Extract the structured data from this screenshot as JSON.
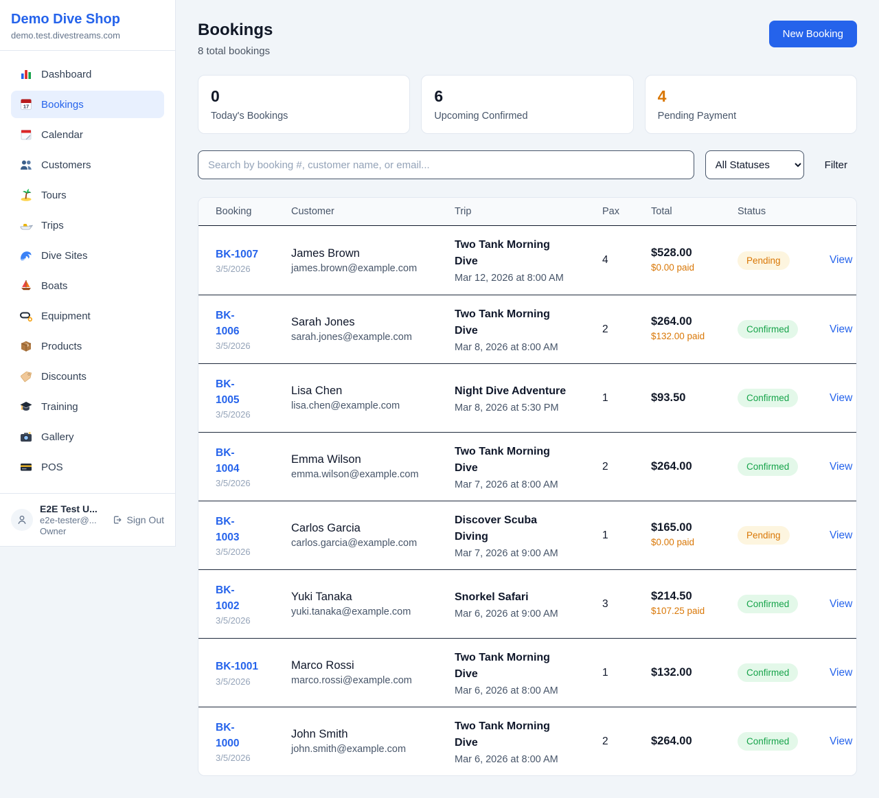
{
  "sidebar": {
    "shop_name": "Demo Dive Shop",
    "shop_domain": "demo.test.divestreams.com",
    "items": [
      {
        "label": "Dashboard",
        "icon": "dashboard-icon",
        "active": false
      },
      {
        "label": "Bookings",
        "icon": "bookings-icon",
        "active": true
      },
      {
        "label": "Calendar",
        "icon": "calendar-icon",
        "active": false
      },
      {
        "label": "Customers",
        "icon": "customers-icon",
        "active": false
      },
      {
        "label": "Tours",
        "icon": "tours-icon",
        "active": false
      },
      {
        "label": "Trips",
        "icon": "trips-icon",
        "active": false
      },
      {
        "label": "Dive Sites",
        "icon": "dive-sites-icon",
        "active": false
      },
      {
        "label": "Boats",
        "icon": "boats-icon",
        "active": false
      },
      {
        "label": "Equipment",
        "icon": "equipment-icon",
        "active": false
      },
      {
        "label": "Products",
        "icon": "products-icon",
        "active": false
      },
      {
        "label": "Discounts",
        "icon": "discounts-icon",
        "active": false
      },
      {
        "label": "Training",
        "icon": "training-icon",
        "active": false
      },
      {
        "label": "Gallery",
        "icon": "gallery-icon",
        "active": false
      },
      {
        "label": "POS",
        "icon": "pos-icon",
        "active": false
      }
    ],
    "user": {
      "name": "E2E Test U...",
      "email": "e2e-tester@...",
      "role": "Owner",
      "sign_out_label": "Sign Out"
    }
  },
  "header": {
    "title": "Bookings",
    "subtitle": "8 total bookings",
    "new_booking_label": "New Booking"
  },
  "stats": [
    {
      "value": "0",
      "label": "Today's Bookings",
      "color": "#111827"
    },
    {
      "value": "6",
      "label": "Upcoming Confirmed",
      "color": "#111827"
    },
    {
      "value": "4",
      "label": "Pending Payment",
      "color": "#d97706"
    }
  ],
  "filters": {
    "search_placeholder": "Search by booking #, customer name, or email...",
    "status_selected": "All Statuses",
    "filter_label": "Filter"
  },
  "table": {
    "columns": [
      "Booking",
      "Customer",
      "Trip",
      "Pax",
      "Total",
      "Status"
    ],
    "view_label": "View",
    "rows": [
      {
        "number": "BK-1007",
        "number_lines": [
          "BK-1007"
        ],
        "date": "3/5/2026",
        "customer_name": "James Brown",
        "customer_email": "james.brown@example.com",
        "trip_lines": [
          "Two Tank Morning",
          "Dive"
        ],
        "trip_datetime": "Mar 12, 2026 at 8:00 AM",
        "pax": "4",
        "total": "$528.00",
        "paid": "$0.00 paid",
        "status": "Pending"
      },
      {
        "number": "BK-1006",
        "number_lines": [
          "BK-",
          "1006"
        ],
        "date": "3/5/2026",
        "customer_name": "Sarah Jones",
        "customer_email": "sarah.jones@example.com",
        "trip_lines": [
          "Two Tank Morning",
          "Dive"
        ],
        "trip_datetime": "Mar 8, 2026 at 8:00 AM",
        "pax": "2",
        "total": "$264.00",
        "paid": "$132.00 paid",
        "status": "Confirmed"
      },
      {
        "number": "BK-1005",
        "number_lines": [
          "BK-",
          "1005"
        ],
        "date": "3/5/2026",
        "customer_name": "Lisa Chen",
        "customer_email": "lisa.chen@example.com",
        "trip_lines": [
          "Night Dive Adventure"
        ],
        "trip_datetime": "Mar 8, 2026 at 5:30 PM",
        "pax": "1",
        "total": "$93.50",
        "paid": null,
        "status": "Confirmed"
      },
      {
        "number": "BK-1004",
        "number_lines": [
          "BK-",
          "1004"
        ],
        "date": "3/5/2026",
        "customer_name": "Emma Wilson",
        "customer_email": "emma.wilson@example.com",
        "trip_lines": [
          "Two Tank Morning",
          "Dive"
        ],
        "trip_datetime": "Mar 7, 2026 at 8:00 AM",
        "pax": "2",
        "total": "$264.00",
        "paid": null,
        "status": "Confirmed"
      },
      {
        "number": "BK-1003",
        "number_lines": [
          "BK-",
          "1003"
        ],
        "date": "3/5/2026",
        "customer_name": "Carlos Garcia",
        "customer_email": "carlos.garcia@example.com",
        "trip_lines": [
          "Discover Scuba",
          "Diving"
        ],
        "trip_datetime": "Mar 7, 2026 at 9:00 AM",
        "pax": "1",
        "total": "$165.00",
        "paid": "$0.00 paid",
        "status": "Pending"
      },
      {
        "number": "BK-1002",
        "number_lines": [
          "BK-",
          "1002"
        ],
        "date": "3/5/2026",
        "customer_name": "Yuki Tanaka",
        "customer_email": "yuki.tanaka@example.com",
        "trip_lines": [
          "Snorkel Safari"
        ],
        "trip_datetime": "Mar 6, 2026 at 9:00 AM",
        "pax": "3",
        "total": "$214.50",
        "paid": "$107.25 paid",
        "status": "Confirmed"
      },
      {
        "number": "BK-1001",
        "number_lines": [
          "BK-1001"
        ],
        "date": "3/5/2026",
        "customer_name": "Marco Rossi",
        "customer_email": "marco.rossi@example.com",
        "trip_lines": [
          "Two Tank Morning",
          "Dive"
        ],
        "trip_datetime": "Mar 6, 2026 at 8:00 AM",
        "pax": "1",
        "total": "$132.00",
        "paid": null,
        "status": "Confirmed"
      },
      {
        "number": "BK-1000",
        "number_lines": [
          "BK-",
          "1000"
        ],
        "date": "3/5/2026",
        "customer_name": "John Smith",
        "customer_email": "john.smith@example.com",
        "trip_lines": [
          "Two Tank Morning",
          "Dive"
        ],
        "trip_datetime": "Mar 6, 2026 at 8:00 AM",
        "pax": "2",
        "total": "$264.00",
        "paid": null,
        "status": "Confirmed"
      }
    ]
  },
  "colors": {
    "brand_blue": "#2563eb",
    "pending_text": "#d97706",
    "pending_bg": "#fdf5df",
    "confirmed_text": "#16a34a",
    "confirmed_bg": "#e3f8e9",
    "page_bg": "#f1f5f9"
  }
}
